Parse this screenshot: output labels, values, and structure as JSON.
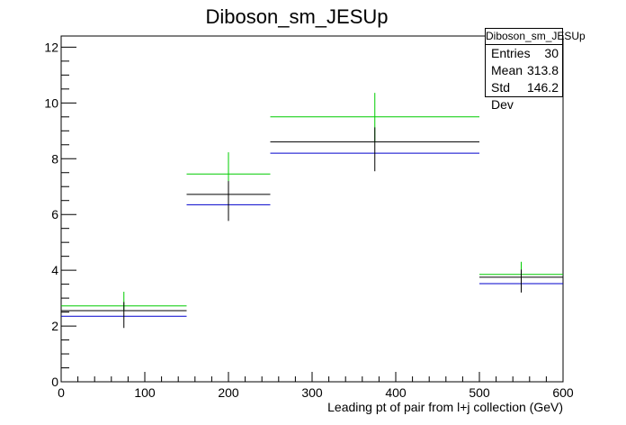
{
  "chart_data": {
    "type": "bar",
    "title": "Diboson_sm_JESUp",
    "xlabel": "Leading pt of pair from l+j collection (GeV)",
    "ylabel": "",
    "xlim": [
      0,
      600
    ],
    "ylim": [
      0,
      12.4
    ],
    "x_ticks": [
      0,
      100,
      200,
      300,
      400,
      500,
      600
    ],
    "y_ticks": [
      0,
      2,
      4,
      6,
      8,
      10,
      12
    ],
    "grid": false,
    "bins": [
      {
        "low": 0,
        "high": 150,
        "center": 75
      },
      {
        "low": 150,
        "high": 250,
        "center": 200
      },
      {
        "low": 250,
        "high": 500,
        "center": 375
      },
      {
        "low": 500,
        "high": 600,
        "center": 550
      }
    ],
    "series": [
      {
        "color": "#00cc00",
        "values": [
          2.72,
          7.45,
          9.5,
          3.85
        ]
      },
      {
        "color": "#000000",
        "values": [
          2.55,
          6.72,
          8.6,
          3.75
        ],
        "errors": [
          0.62,
          0.95,
          1.05,
          0.55
        ]
      },
      {
        "color": "#0000cc",
        "values": [
          2.35,
          6.35,
          8.2,
          3.52
        ]
      }
    ]
  },
  "stats_box": {
    "title": "Diboson_sm_JESUp",
    "rows": [
      {
        "label": "Entries",
        "value": "30"
      },
      {
        "label": "Mean",
        "value": "313.8"
      },
      {
        "label": "Std Dev",
        "value": "146.2"
      }
    ]
  }
}
